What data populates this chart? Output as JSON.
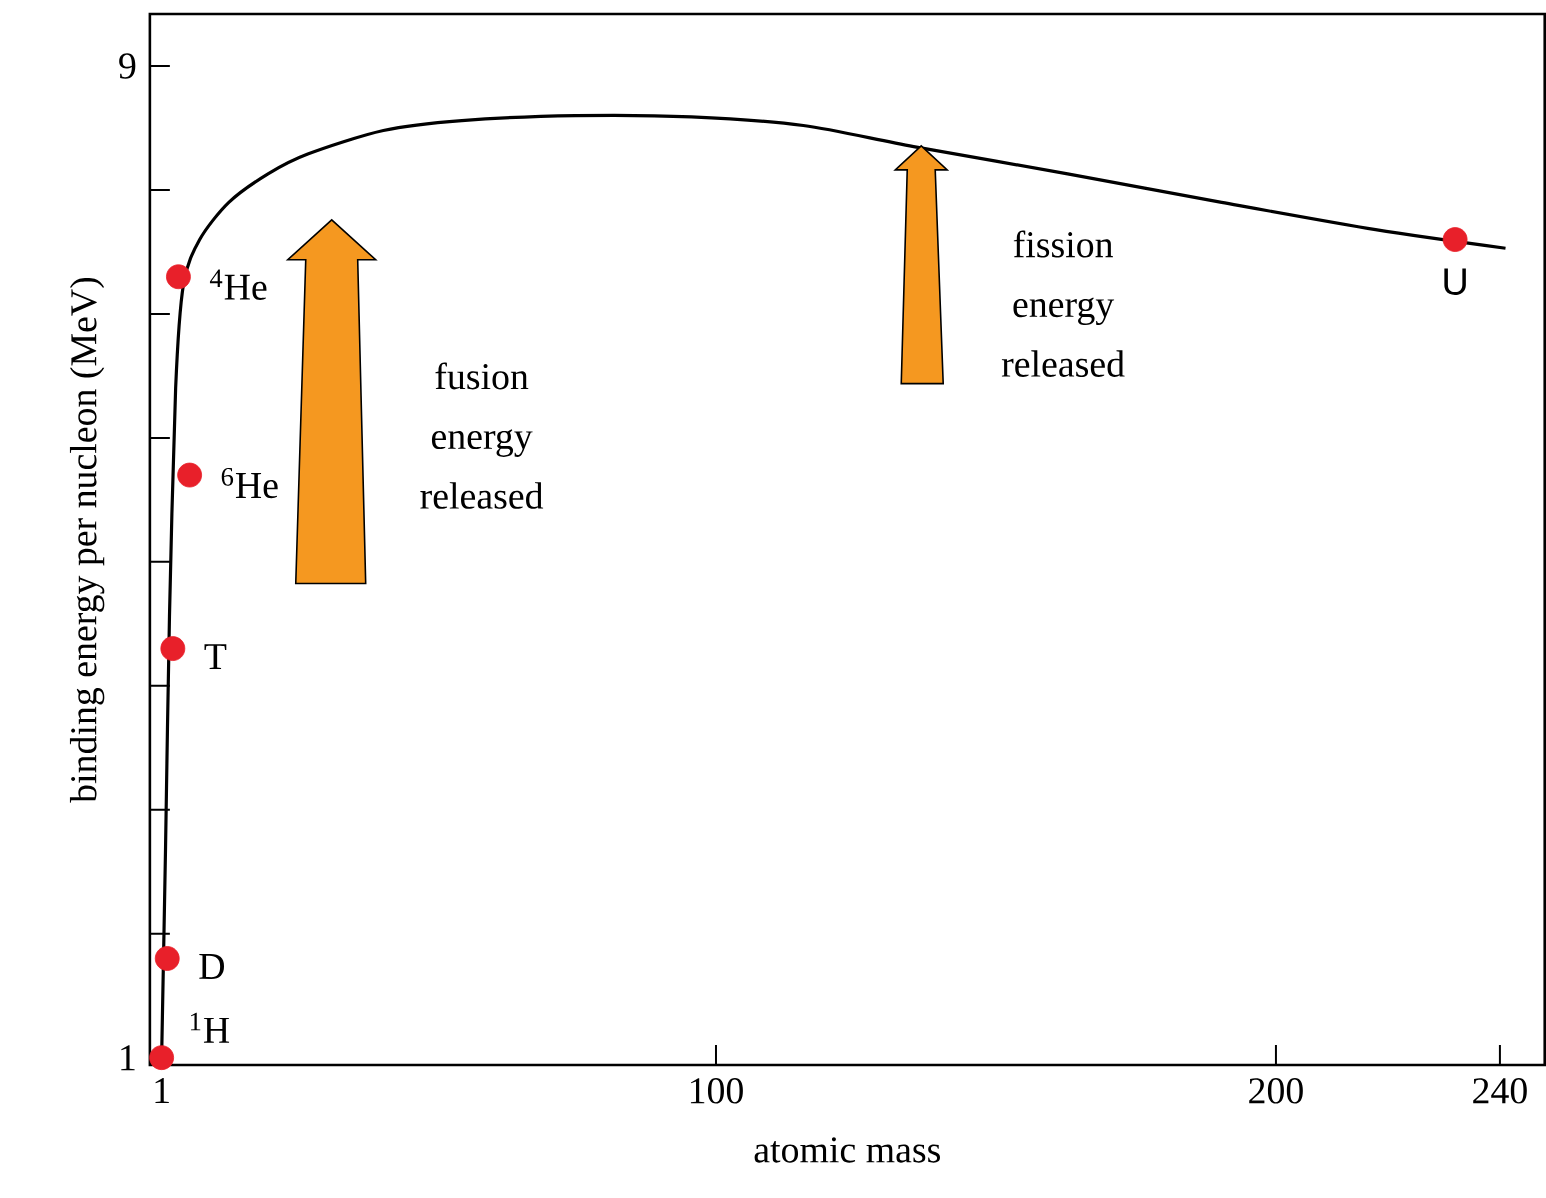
{
  "chart_data": {
    "type": "line",
    "xlabel": "atomic mass",
    "ylabel": "binding energy per nucleon (MeV)",
    "xlim": [
      -1.1,
      248
    ],
    "ylim": [
      0.94,
      9.42
    ],
    "xticks": [
      1,
      100,
      200,
      240
    ],
    "yticks": [
      1,
      {
        "value": 2,
        "label": null
      },
      {
        "value": 3,
        "label": null
      },
      {
        "value": 4,
        "label": null
      },
      {
        "value": 5,
        "label": null
      },
      {
        "value": 6,
        "label": null
      },
      {
        "value": 7,
        "label": null
      },
      {
        "value": 8,
        "label": null
      },
      9
    ],
    "series": [
      {
        "color": "#000000",
        "x": [
          1,
          1.7,
          2.4,
          3.5,
          4.9,
          7.8,
          13,
          20,
          27.1,
          40.6,
          54.6,
          74.9,
          95.6,
          115.6,
          135.3,
          162.8,
          190.3,
          217.8,
          241
        ],
        "values": [
          1,
          2.7,
          4.56,
          6.4,
          7.24,
          7.6,
          7.9,
          8.13,
          8.29,
          8.48,
          8.56,
          8.6,
          8.59,
          8.52,
          8.35,
          8.13,
          7.9,
          7.68,
          7.53
        ]
      },
      {
        "type": "scatter",
        "color": "#e8202a",
        "x": [
          1,
          2,
          3,
          6,
          4,
          232
        ],
        "values": [
          1,
          1.8,
          4.3,
          5.7,
          7.3,
          7.6
        ]
      }
    ],
    "annotations": [
      {
        "text": "$^{1}$H",
        "x": 1,
        "y": 1
      },
      {
        "text": "D",
        "x": 2,
        "y": 1.8
      },
      {
        "text": "T",
        "x": 3,
        "y": 4.3
      },
      {
        "text": "$^{6}$He",
        "x": 6,
        "y": 5.7
      },
      {
        "text": "$^{4}$He",
        "x": 4,
        "y": 7.3
      },
      {
        "text": "U",
        "x": 232,
        "y": 7.6
      },
      "fusion energy released",
      "fission energy released"
    ]
  }
}
